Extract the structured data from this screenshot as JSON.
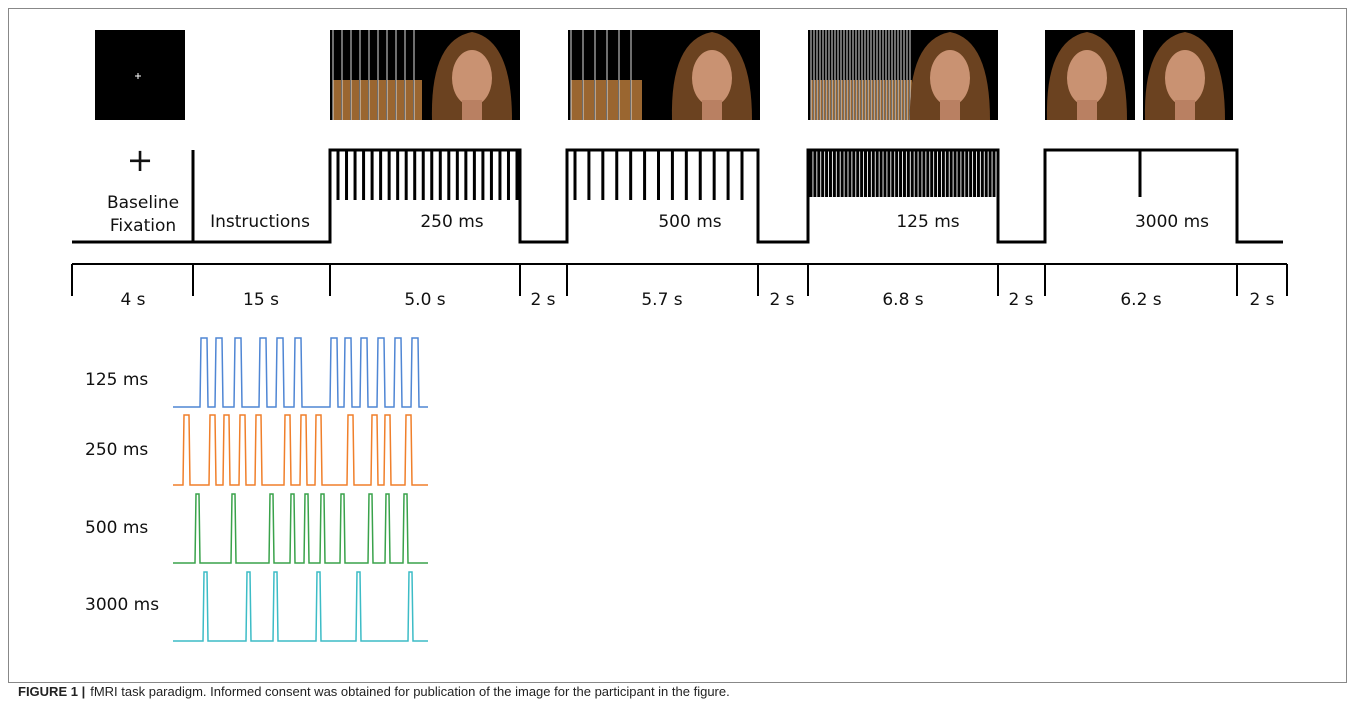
{
  "timeline": {
    "fixation_symbol": "+",
    "baseline_lines": [
      "Baseline",
      "Fixation"
    ],
    "blocks": [
      "Instructions",
      "250 ms",
      "500 ms",
      "125 ms",
      "3000 ms"
    ]
  },
  "durations": [
    "4 s",
    "15 s",
    "5.0 s",
    "2 s",
    "5.7 s",
    "2 s",
    "6.8 s",
    "2 s",
    "6.2 s",
    "2 s"
  ],
  "trains": {
    "labels": [
      "125 ms",
      "250 ms",
      "500 ms",
      "3000 ms"
    ]
  },
  "caption": {
    "label": "FIGURE 1 |",
    "text": "fMRI task paradigm. Informed consent was obtained for publication of the image for the participant in the figure."
  }
}
